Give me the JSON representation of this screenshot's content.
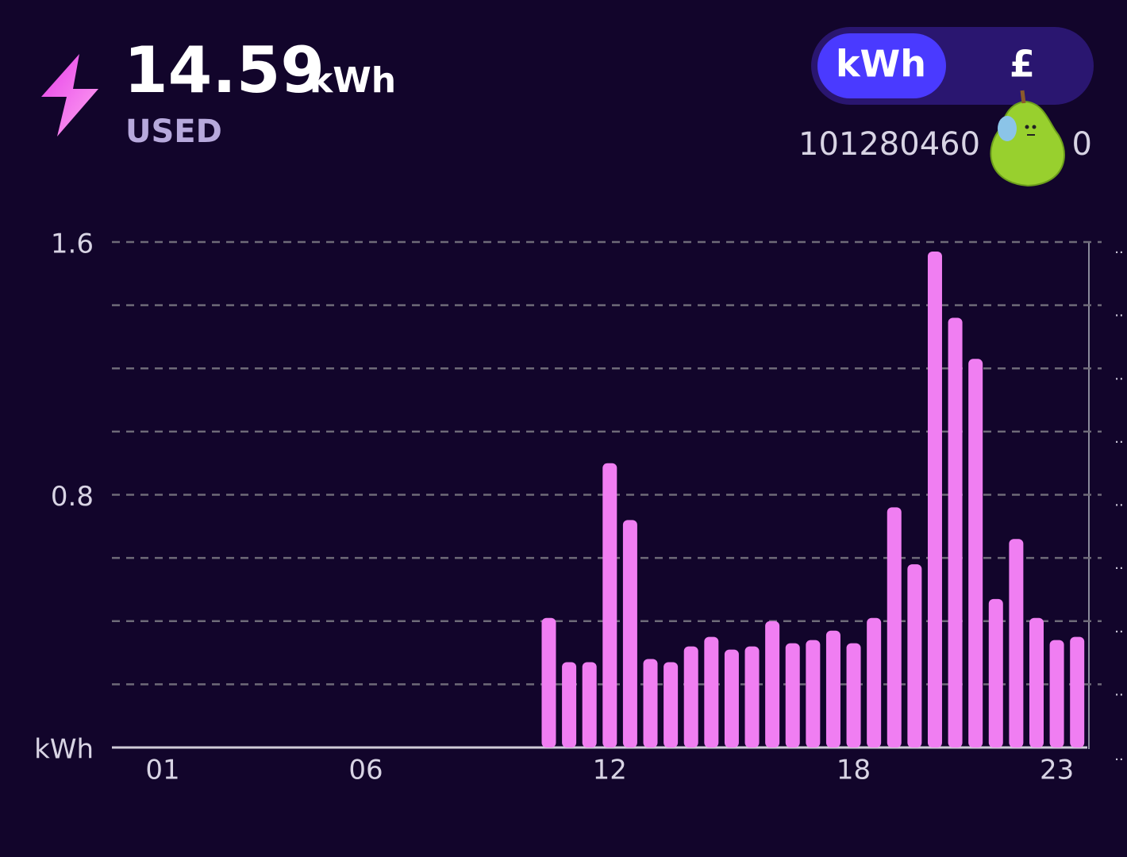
{
  "header": {
    "total": "14.59",
    "unit": "kWh",
    "label": "USED"
  },
  "toggle": {
    "options": [
      "kWh",
      "£"
    ],
    "selected": 0
  },
  "meter_id": [
    "101280460",
    "0"
  ],
  "chart_data": {
    "type": "bar",
    "categories": [
      null,
      null,
      "01",
      null,
      null,
      null,
      null,
      null,
      null,
      null,
      null,
      null,
      "06",
      null,
      null,
      null,
      null,
      null,
      null,
      null,
      null,
      null,
      null,
      null,
      "12",
      null,
      null,
      null,
      null,
      null,
      null,
      null,
      null,
      null,
      null,
      null,
      "18",
      null,
      null,
      null,
      null,
      null,
      null,
      null,
      null,
      null,
      "23",
      null
    ],
    "values": [
      0,
      0,
      0,
      0,
      0,
      0,
      0,
      0,
      0,
      0,
      0,
      0,
      0,
      0,
      0,
      0,
      0,
      0,
      0,
      0,
      0,
      0.41,
      0.27,
      0.27,
      0.9,
      0.72,
      0.28,
      0.27,
      0.32,
      0.35,
      0.31,
      0.32,
      0.4,
      0.33,
      0.34,
      0.37,
      0.33,
      0.41,
      0.76,
      0.58,
      1.57,
      1.36,
      1.23,
      0.47,
      0.66,
      0.41,
      0.34,
      0.35
    ],
    "color": "#f07ef2",
    "ylim": [
      0,
      1.6
    ],
    "yticks": [
      {
        "value": 0,
        "label": "kWh"
      },
      0.8,
      1.6
    ],
    "gridlines": [
      0.2,
      0.4,
      0.6,
      0.8,
      1.0,
      1.2,
      1.4,
      1.6
    ],
    "grid": true
  }
}
